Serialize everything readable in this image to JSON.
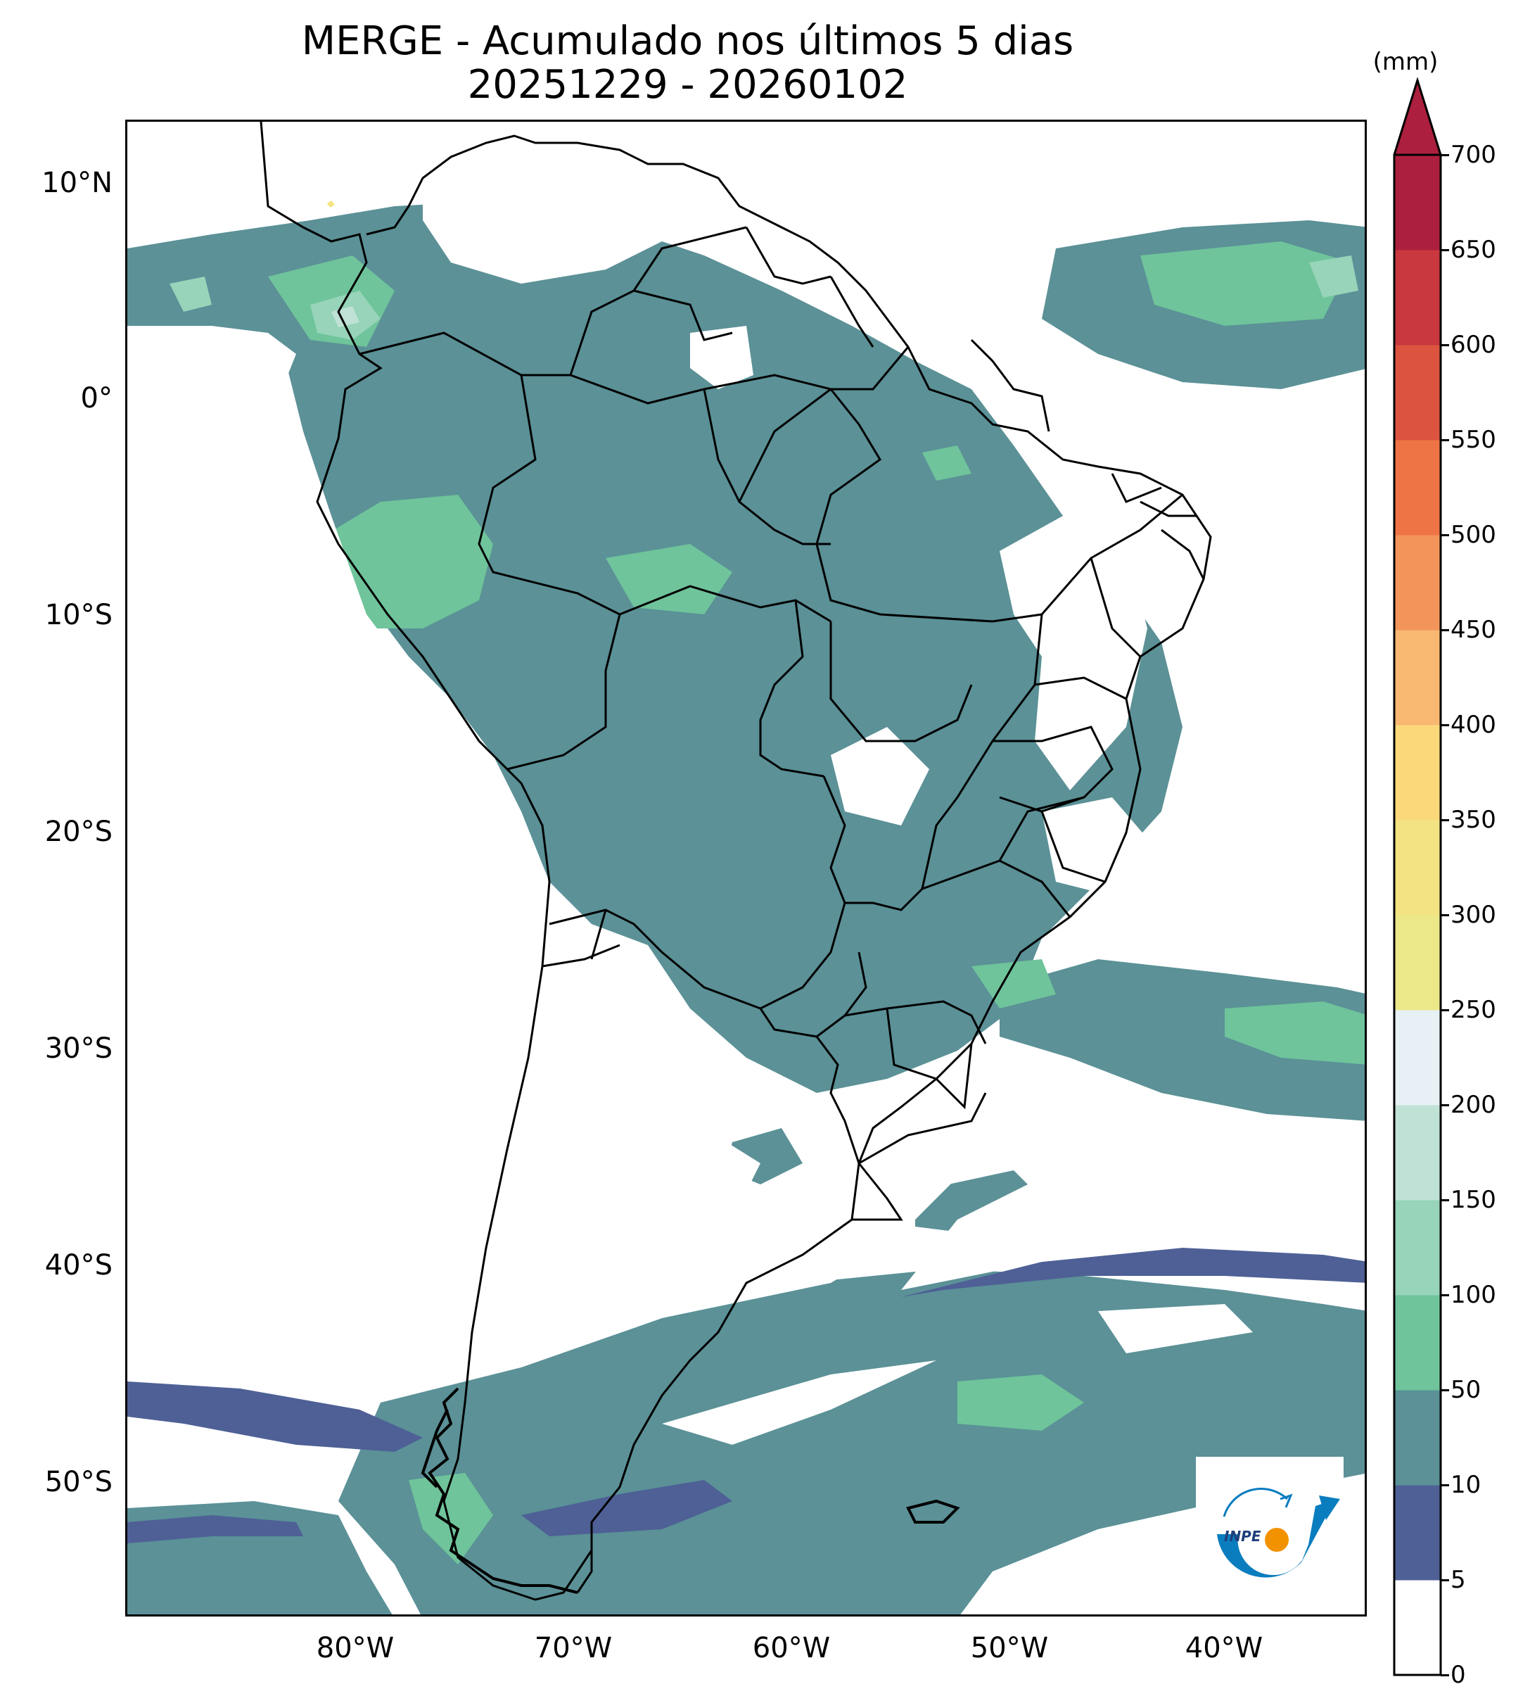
{
  "title": {
    "line1": "MERGE - Acumulado nos últimos 5 dias",
    "line2": "20251229 - 20260102"
  },
  "axes": {
    "lat_labels": [
      "10°N",
      "0°",
      "10°S",
      "20°S",
      "30°S",
      "40°S",
      "50°S"
    ],
    "lon_labels": [
      "80°W",
      "70°W",
      "60°W",
      "50°W",
      "40°W"
    ],
    "lat_values": [
      10,
      0,
      -10,
      -20,
      -30,
      -40,
      -50
    ],
    "lon_values": [
      -80,
      -70,
      -60,
      -50,
      -40
    ],
    "lon_range": [
      -90,
      -33
    ],
    "lat_range": [
      -56,
      13
    ]
  },
  "colorbar": {
    "unit": "(mm)",
    "levels": [
      0,
      5,
      10,
      50,
      100,
      150,
      200,
      250,
      300,
      350,
      400,
      450,
      500,
      550,
      600,
      650,
      700
    ],
    "level_labels": [
      "0",
      "5",
      "10",
      "50",
      "100",
      "150",
      "200",
      "250",
      "300",
      "350",
      "400",
      "450",
      "500",
      "550",
      "600",
      "650",
      "700"
    ],
    "colors": [
      "#ffffff",
      "#4e6096",
      "#5b9197",
      "#6fc49b",
      "#97d4b9",
      "#c0e2d6",
      "#e6f0f5",
      "#ebe88a",
      "#f3e383",
      "#fbd97a",
      "#f9b871",
      "#f3945a",
      "#ef7445",
      "#dc533f",
      "#c8383e",
      "#ac1f3e"
    ],
    "extend": "max"
  },
  "colors": {
    "low": "#4e6096",
    "mid": "#5b9197",
    "high": "#6fc49b",
    "peak": "#97d4b9",
    "border": "#000000"
  },
  "logo": {
    "text": "INPE",
    "arc_color": "#0a7dbf",
    "dot_color": "#f39200"
  }
}
